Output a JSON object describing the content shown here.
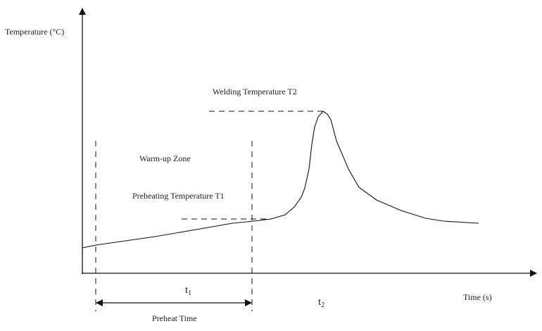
{
  "diagram": {
    "y_axis_label": "Temperature (°C)",
    "x_axis_label": "Time (s)",
    "welding_temp_label": "Welding Temperature T2",
    "warmup_zone_label": "Warm-up Zone",
    "preheat_temp_label": "Preheating Temperature T1",
    "t1": {
      "base": "t",
      "sub": "1"
    },
    "t2": {
      "base": "t",
      "sub": "2"
    },
    "preheat_time_label": "Preheat Time"
  }
}
